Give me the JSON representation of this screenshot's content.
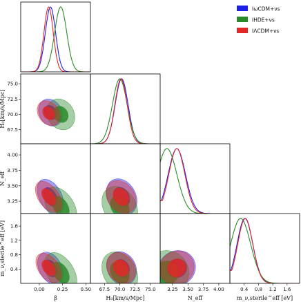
{
  "chart_data": {
    "type": "corner",
    "params": [
      {
        "key": "beta",
        "label": "β",
        "range": [
          -0.2,
          0.55
        ],
        "ticks": [
          "0.00",
          "0.25",
          "0.50"
        ],
        "tick_values": [
          0.0,
          0.25,
          0.5
        ]
      },
      {
        "key": "H0",
        "label": "H₀[km/s/Mpc]",
        "range": [
          65.2,
          76.6
        ],
        "ticks": [
          "67.5",
          "70.0",
          "72.5",
          "75.0"
        ],
        "tick_values": [
          67.5,
          70.0,
          72.5,
          75.0
        ]
      },
      {
        "key": "Neff",
        "label": "N_eff",
        "range": [
          3.05,
          4.18
        ],
        "ticks": [
          "3.25",
          "3.50",
          "3.75",
          "4.00"
        ],
        "tick_values": [
          3.25,
          3.5,
          3.75,
          4.0
        ]
      },
      {
        "key": "msterile",
        "label": "m_ν,sterile^eff [eV]",
        "range": [
          0.0,
          1.95
        ],
        "ticks": [
          "0.4",
          "0.8",
          "1.2",
          "1.6"
        ],
        "tick_values": [
          0.4,
          0.8,
          1.2,
          1.6
        ]
      }
    ],
    "series": [
      {
        "name": "IωCDM+νs",
        "color": "#1f1fe6",
        "means": {
          "beta": 0.12,
          "H0": 70.3,
          "Neff": 3.32,
          "msterile": 0.42
        },
        "sds": {
          "beta": 0.055,
          "H0": 1.05,
          "Neff": 0.14,
          "msterile": 0.22
        }
      },
      {
        "name": "IHDE+νs",
        "color": "#2a8a2a",
        "means": {
          "beta": 0.23,
          "H0": 70.0,
          "Neff": 3.16,
          "msterile": 0.3
        },
        "sds": {
          "beta": 0.065,
          "H0": 1.2,
          "Neff": 0.16,
          "msterile": 0.28
        }
      },
      {
        "name": "IΛCDM+νs",
        "color": "#e02828",
        "means": {
          "beta": 0.1,
          "H0": 70.2,
          "Neff": 3.32,
          "msterile": 0.43
        },
        "sds": {
          "beta": 0.05,
          "H0": 1.0,
          "Neff": 0.13,
          "msterile": 0.21
        }
      }
    ],
    "diag_yticks": {
      "H0": [
        "67.5",
        "70.0",
        "72.5",
        "75.0"
      ],
      "Neff": [
        "3.25",
        "3.50",
        "3.75",
        "4.00"
      ],
      "msterile": [
        "0.4",
        "0.8",
        "1.2",
        "1.6"
      ]
    },
    "y_axis_labels": {
      "H0": "H₀[km/s/Mpc]",
      "Neff": "N_eff",
      "msterile": "m_ν,sterile^eff [eV]"
    }
  }
}
